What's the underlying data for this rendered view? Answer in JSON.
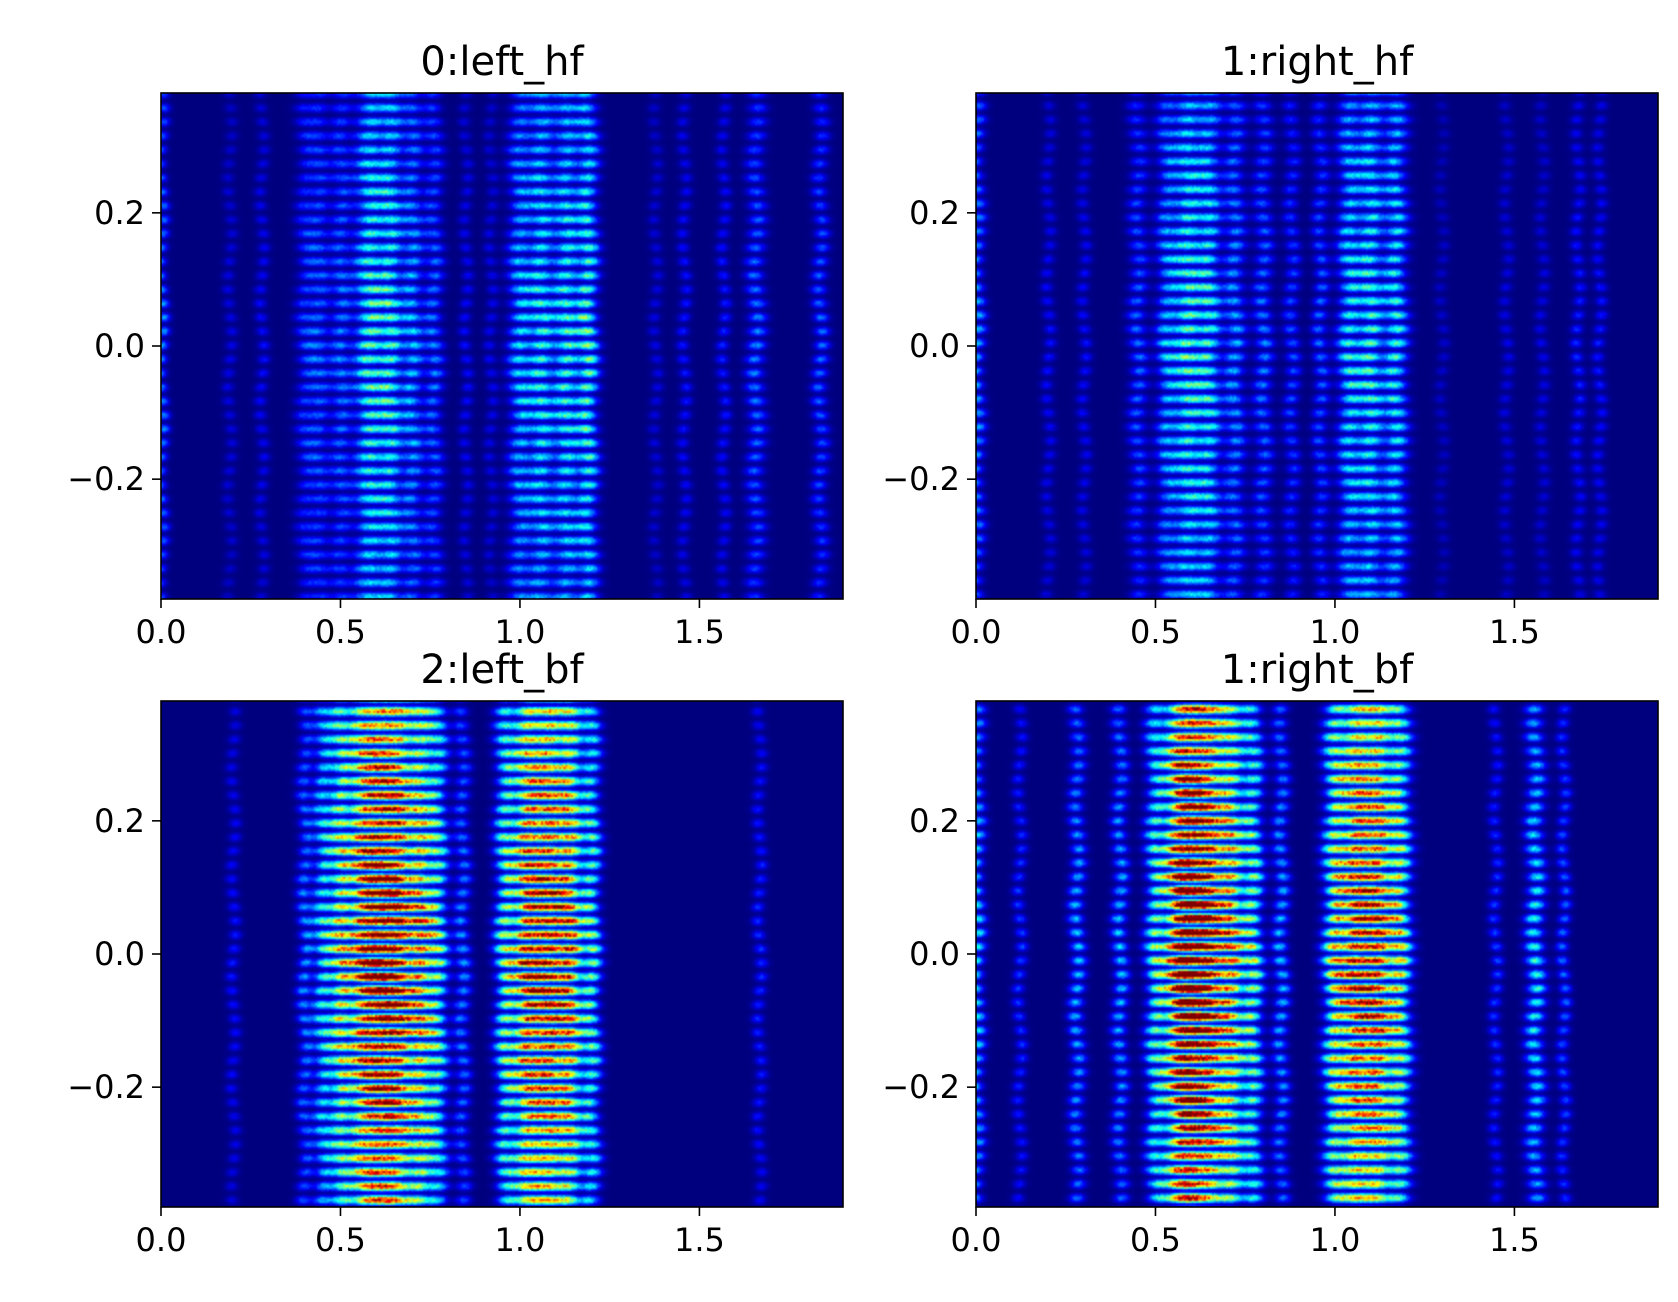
{
  "figure": {
    "background": "#ffffff"
  },
  "colormap": {
    "name": "jet",
    "stops": [
      "#00007f",
      "#0000ff",
      "#007fff",
      "#00ffff",
      "#7fff7f",
      "#ffff00",
      "#ff7f00",
      "#ff0000",
      "#7f0000"
    ]
  },
  "chart_data": [
    {
      "type": "heatmap",
      "title": "0:left_hf",
      "xlim": [
        0.0,
        1.9
      ],
      "ylim": [
        -0.38,
        0.38
      ],
      "xticks": [
        0.0,
        0.5,
        1.0,
        1.5
      ],
      "xtick_labels": [
        "0.0",
        "0.5",
        "1.0",
        "1.5"
      ],
      "yticks": [
        0.2,
        0.0,
        -0.2
      ],
      "ytick_labels": [
        "0.2",
        "0.0",
        "−0.2"
      ],
      "intensity_scale": 0.55,
      "bands": [
        {
          "x": 0.0,
          "w": 0.012,
          "a": 0.55
        },
        {
          "x": 0.19,
          "w": 0.012,
          "a": 0.2
        },
        {
          "x": 0.28,
          "w": 0.012,
          "a": 0.25
        },
        {
          "x": 0.4,
          "w": 0.018,
          "a": 0.35
        },
        {
          "x": 0.44,
          "w": 0.02,
          "a": 0.45
        },
        {
          "x": 0.5,
          "w": 0.02,
          "a": 0.5
        },
        {
          "x": 0.58,
          "w": 0.028,
          "a": 0.95
        },
        {
          "x": 0.64,
          "w": 0.022,
          "a": 0.85
        },
        {
          "x": 0.7,
          "w": 0.02,
          "a": 0.65
        },
        {
          "x": 0.76,
          "w": 0.018,
          "a": 0.5
        },
        {
          "x": 0.85,
          "w": 0.012,
          "a": 0.25
        },
        {
          "x": 0.92,
          "w": 0.012,
          "a": 0.22
        },
        {
          "x": 1.0,
          "w": 0.022,
          "a": 0.7
        },
        {
          "x": 1.06,
          "w": 0.024,
          "a": 0.85
        },
        {
          "x": 1.13,
          "w": 0.024,
          "a": 0.88
        },
        {
          "x": 1.19,
          "w": 0.02,
          "a": 0.95
        },
        {
          "x": 1.38,
          "w": 0.012,
          "a": 0.2
        },
        {
          "x": 1.46,
          "w": 0.012,
          "a": 0.28
        },
        {
          "x": 1.57,
          "w": 0.012,
          "a": 0.3
        },
        {
          "x": 1.66,
          "w": 0.018,
          "a": 0.5
        },
        {
          "x": 1.84,
          "w": 0.015,
          "a": 0.45
        }
      ]
    },
    {
      "type": "heatmap",
      "title": "1:right_hf",
      "xlim": [
        0.0,
        1.9
      ],
      "ylim": [
        -0.38,
        0.38
      ],
      "xticks": [
        0.0,
        0.5,
        1.0,
        1.5
      ],
      "xtick_labels": [
        "0.0",
        "0.5",
        "1.0",
        "1.5"
      ],
      "yticks": [
        0.2,
        0.0,
        -0.2
      ],
      "ytick_labels": [
        "0.2",
        "0.0",
        "−0.2"
      ],
      "intensity_scale": 0.55,
      "bands": [
        {
          "x": 0.0,
          "w": 0.015,
          "a": 0.6
        },
        {
          "x": 0.2,
          "w": 0.012,
          "a": 0.25
        },
        {
          "x": 0.3,
          "w": 0.012,
          "a": 0.25
        },
        {
          "x": 0.45,
          "w": 0.018,
          "a": 0.45
        },
        {
          "x": 0.53,
          "w": 0.02,
          "a": 0.6
        },
        {
          "x": 0.59,
          "w": 0.028,
          "a": 0.95
        },
        {
          "x": 0.65,
          "w": 0.022,
          "a": 0.8
        },
        {
          "x": 0.72,
          "w": 0.02,
          "a": 0.6
        },
        {
          "x": 0.8,
          "w": 0.018,
          "a": 0.5
        },
        {
          "x": 0.88,
          "w": 0.015,
          "a": 0.4
        },
        {
          "x": 0.96,
          "w": 0.015,
          "a": 0.45
        },
        {
          "x": 1.04,
          "w": 0.022,
          "a": 0.8
        },
        {
          "x": 1.1,
          "w": 0.024,
          "a": 0.9
        },
        {
          "x": 1.17,
          "w": 0.022,
          "a": 0.85
        },
        {
          "x": 1.3,
          "w": 0.012,
          "a": 0.15
        },
        {
          "x": 1.48,
          "w": 0.012,
          "a": 0.2
        },
        {
          "x": 1.58,
          "w": 0.012,
          "a": 0.2
        },
        {
          "x": 1.68,
          "w": 0.012,
          "a": 0.3
        },
        {
          "x": 1.74,
          "w": 0.012,
          "a": 0.28
        }
      ]
    },
    {
      "type": "heatmap",
      "title": "2:left_bf",
      "xlim": [
        0.0,
        1.9
      ],
      "ylim": [
        -0.38,
        0.38
      ],
      "xticks": [
        0.0,
        0.5,
        1.0,
        1.5
      ],
      "xtick_labels": [
        "0.0",
        "0.5",
        "1.0",
        "1.5"
      ],
      "yticks": [
        0.2,
        0.0,
        -0.2
      ],
      "ytick_labels": [
        "0.2",
        "0.0",
        "−0.2"
      ],
      "intensity_scale": 1.0,
      "bands": [
        {
          "x": 0.2,
          "w": 0.012,
          "a": 0.15
        },
        {
          "x": 0.4,
          "w": 0.015,
          "a": 0.3
        },
        {
          "x": 0.45,
          "w": 0.018,
          "a": 0.45
        },
        {
          "x": 0.5,
          "w": 0.022,
          "a": 0.7
        },
        {
          "x": 0.56,
          "w": 0.026,
          "a": 0.85
        },
        {
          "x": 0.61,
          "w": 0.028,
          "a": 0.98
        },
        {
          "x": 0.66,
          "w": 0.026,
          "a": 0.92
        },
        {
          "x": 0.72,
          "w": 0.024,
          "a": 0.8
        },
        {
          "x": 0.77,
          "w": 0.02,
          "a": 0.55
        },
        {
          "x": 0.84,
          "w": 0.015,
          "a": 0.3
        },
        {
          "x": 0.96,
          "w": 0.02,
          "a": 0.6
        },
        {
          "x": 1.02,
          "w": 0.026,
          "a": 0.92
        },
        {
          "x": 1.08,
          "w": 0.028,
          "a": 0.98
        },
        {
          "x": 1.14,
          "w": 0.024,
          "a": 0.85
        },
        {
          "x": 1.2,
          "w": 0.018,
          "a": 0.55
        },
        {
          "x": 1.67,
          "w": 0.012,
          "a": 0.18
        }
      ]
    },
    {
      "type": "heatmap",
      "title": "1:right_bf",
      "xlim": [
        0.0,
        1.9
      ],
      "ylim": [
        -0.38,
        0.38
      ],
      "xticks": [
        0.0,
        0.5,
        1.0,
        1.5
      ],
      "xtick_labels": [
        "0.0",
        "0.5",
        "1.0",
        "1.5"
      ],
      "yticks": [
        0.2,
        0.0,
        -0.2
      ],
      "ytick_labels": [
        "0.2",
        "0.0",
        "−0.2"
      ],
      "intensity_scale": 1.0,
      "bands": [
        {
          "x": 0.0,
          "w": 0.015,
          "a": 0.4
        },
        {
          "x": 0.12,
          "w": 0.012,
          "a": 0.2
        },
        {
          "x": 0.28,
          "w": 0.015,
          "a": 0.35
        },
        {
          "x": 0.4,
          "w": 0.015,
          "a": 0.35
        },
        {
          "x": 0.5,
          "w": 0.02,
          "a": 0.55
        },
        {
          "x": 0.56,
          "w": 0.026,
          "a": 0.85
        },
        {
          "x": 0.6,
          "w": 0.028,
          "a": 0.98
        },
        {
          "x": 0.65,
          "w": 0.028,
          "a": 0.95
        },
        {
          "x": 0.71,
          "w": 0.024,
          "a": 0.8
        },
        {
          "x": 0.77,
          "w": 0.02,
          "a": 0.6
        },
        {
          "x": 0.85,
          "w": 0.015,
          "a": 0.35
        },
        {
          "x": 1.0,
          "w": 0.022,
          "a": 0.7
        },
        {
          "x": 1.06,
          "w": 0.028,
          "a": 0.97
        },
        {
          "x": 1.12,
          "w": 0.026,
          "a": 0.92
        },
        {
          "x": 1.18,
          "w": 0.022,
          "a": 0.7
        },
        {
          "x": 1.45,
          "w": 0.012,
          "a": 0.2
        },
        {
          "x": 1.56,
          "w": 0.018,
          "a": 0.45
        },
        {
          "x": 1.64,
          "w": 0.012,
          "a": 0.25
        }
      ]
    }
  ]
}
